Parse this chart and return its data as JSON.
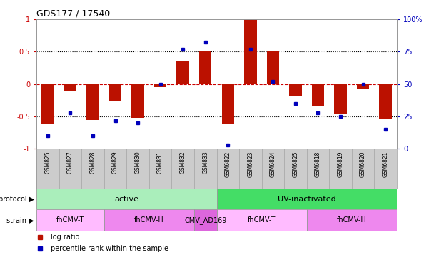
{
  "title": "GDS177 / 17540",
  "samples": [
    "GSM825",
    "GSM827",
    "GSM828",
    "GSM829",
    "GSM830",
    "GSM831",
    "GSM832",
    "GSM833",
    "GSM6822",
    "GSM6823",
    "GSM6824",
    "GSM6825",
    "GSM6818",
    "GSM6819",
    "GSM6820",
    "GSM6821"
  ],
  "log_ratio": [
    -0.62,
    -0.1,
    -0.55,
    -0.27,
    -0.52,
    -0.05,
    0.35,
    0.5,
    -0.62,
    1.0,
    0.5,
    -0.18,
    -0.35,
    -0.47,
    -0.08,
    -0.54
  ],
  "percentile": [
    10,
    28,
    10,
    22,
    20,
    50,
    77,
    82,
    3,
    77,
    52,
    35,
    28,
    25,
    50,
    15
  ],
  "protocol_groups": [
    {
      "label": "active",
      "start": 0,
      "end": 8,
      "color": "#aaeebb"
    },
    {
      "label": "UV-inactivated",
      "start": 8,
      "end": 16,
      "color": "#44dd66"
    }
  ],
  "strain_groups": [
    {
      "label": "fhCMV-T",
      "start": 0,
      "end": 3,
      "color": "#ffbbff"
    },
    {
      "label": "fhCMV-H",
      "start": 3,
      "end": 7,
      "color": "#ee88ee"
    },
    {
      "label": "CMV_AD169",
      "start": 7,
      "end": 8,
      "color": "#dd66dd"
    },
    {
      "label": "fhCMV-T",
      "start": 8,
      "end": 12,
      "color": "#ffbbff"
    },
    {
      "label": "fhCMV-H",
      "start": 12,
      "end": 16,
      "color": "#ee88ee"
    }
  ],
  "bar_color": "#bb1100",
  "dot_color": "#0000bb",
  "ylim_left": [
    -1.0,
    1.0
  ],
  "ylim_right": [
    0,
    100
  ],
  "yticks_left": [
    -1.0,
    -0.5,
    0.0,
    0.5,
    1.0
  ],
  "yticks_right": [
    0,
    25,
    50,
    75,
    100
  ],
  "bg_color": "#ffffff",
  "plot_bg": "#ffffff",
  "zero_line_color": "#cc0000",
  "label_protocol": "protocol",
  "label_strain": "strain",
  "legend_items": [
    {
      "label": "log ratio",
      "color": "#bb1100"
    },
    {
      "label": "percentile rank within the sample",
      "color": "#0000bb"
    }
  ],
  "xtick_bg": "#cccccc",
  "spine_color": "#999999"
}
